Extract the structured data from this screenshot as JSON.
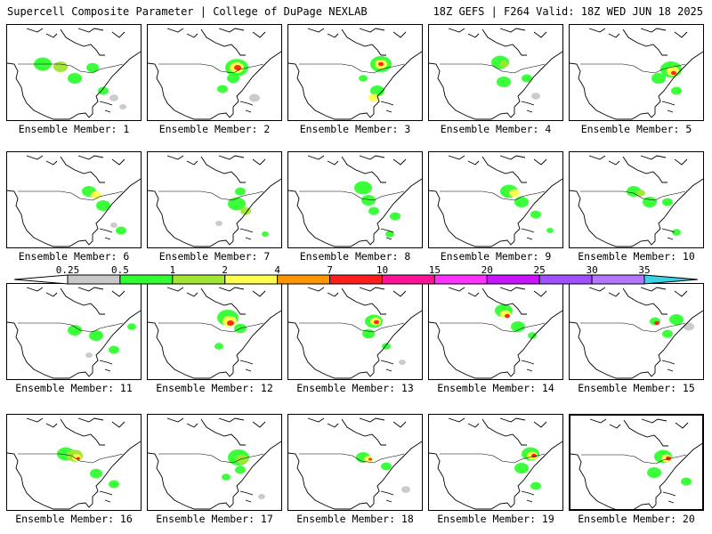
{
  "header": {
    "title": "Supercell Composite Parameter | College of DuPage NEXLAB",
    "run_info": "18Z GEFS | F264 Valid: 18Z WED JUN 18 2025"
  },
  "member_label_prefix": "Ensemble Member:",
  "members": [
    {
      "number": "1"
    },
    {
      "number": "2"
    },
    {
      "number": "3"
    },
    {
      "number": "4"
    },
    {
      "number": "5"
    },
    {
      "number": "6"
    },
    {
      "number": "7"
    },
    {
      "number": "8"
    },
    {
      "number": "9"
    },
    {
      "number": "10"
    },
    {
      "number": "11"
    },
    {
      "number": "12"
    },
    {
      "number": "13"
    },
    {
      "number": "14"
    },
    {
      "number": "15"
    },
    {
      "number": "16"
    },
    {
      "number": "17"
    },
    {
      "number": "18"
    },
    {
      "number": "19"
    },
    {
      "number": "20"
    }
  ],
  "selected_member": "20",
  "colorbar": {
    "thresholds": [
      "0.25",
      "0.5",
      "1",
      "2",
      "4",
      "7",
      "10",
      "15",
      "20",
      "25",
      "30",
      "35"
    ],
    "colors": [
      "#ffffff",
      "#c8c8c8",
      "#32ff32",
      "#a0e632",
      "#ffff50",
      "#ff9600",
      "#ff1e1e",
      "#ff1496",
      "#ff32ff",
      "#c814ff",
      "#a050ff",
      "#b478ff",
      "#3cd2e6"
    ]
  }
}
